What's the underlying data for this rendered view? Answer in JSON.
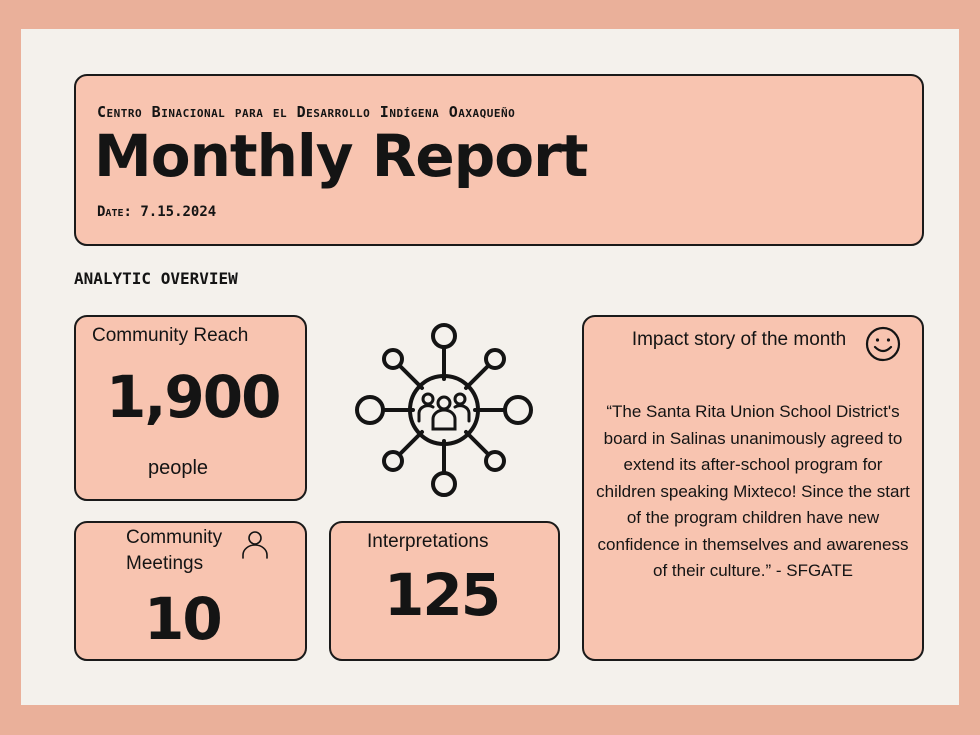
{
  "header": {
    "organization": "Centro Binacional para el Desarrollo Indígena Oaxaqueño",
    "title": "Monthly Report",
    "date": "Date: 7.15.2024"
  },
  "section_label": "ANALYTIC OVERVIEW",
  "community_reach": {
    "label": "Community Reach",
    "value": "1,900",
    "unit": "people"
  },
  "community_meetings": {
    "label_line1": "Community",
    "label_line2": "Meetings",
    "value": "10",
    "icon": "person-icon"
  },
  "interpretations": {
    "label": "Interpretations",
    "value": "125"
  },
  "impact_story": {
    "title": "Impact story of the month",
    "quote": "“The Santa Rita Union School District's board in Salinas unanimously agreed to extend its after-school program for children speaking Mixteco! Since the start of the program children have new confidence in themselves and awareness of their culture.” - SFGATE",
    "icon": "smile-icon"
  },
  "decoration": {
    "center_icon": "network-people-icon"
  },
  "colors": {
    "border": "#eab09a",
    "page": "#f4f1ec",
    "card": "#f8c4b0",
    "ink": "#141414"
  }
}
